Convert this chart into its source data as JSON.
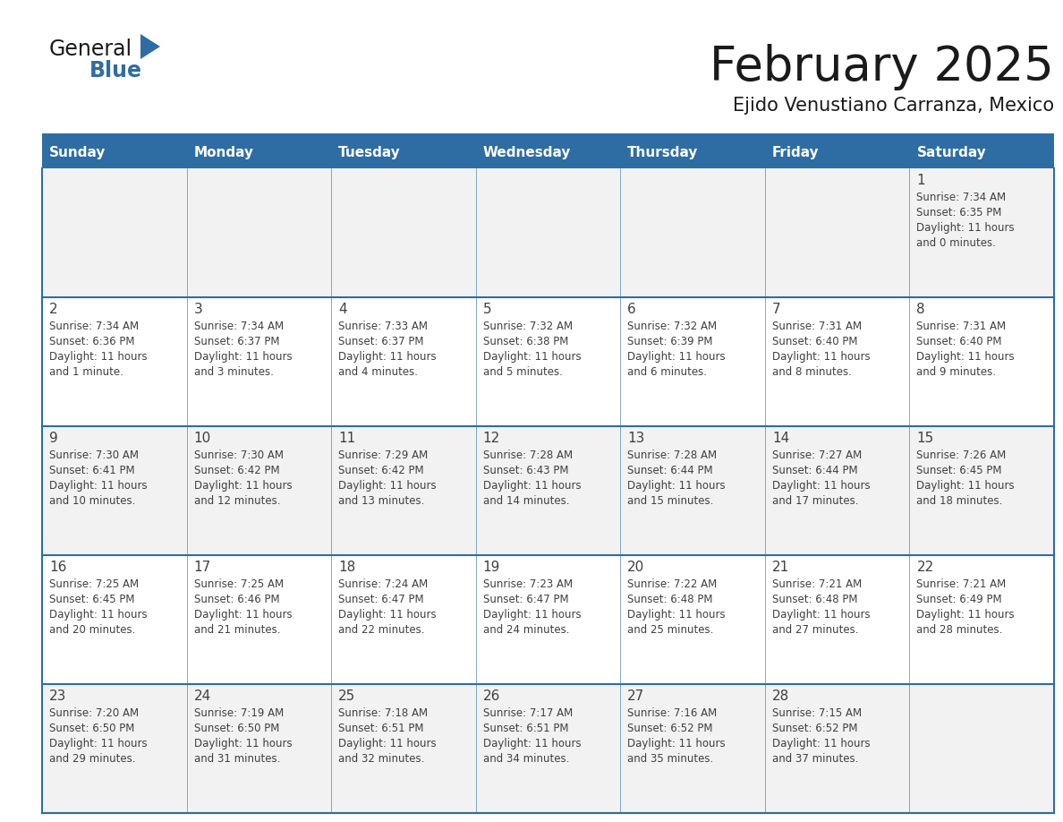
{
  "title": "February 2025",
  "subtitle": "Ejido Venustiano Carranza, Mexico",
  "header_bg": "#2E6DA4",
  "header_text": "#FFFFFF",
  "cell_bg_odd": "#F2F2F2",
  "cell_bg_even": "#FFFFFF",
  "border_color": "#2E6DA4",
  "day_headers": [
    "Sunday",
    "Monday",
    "Tuesday",
    "Wednesday",
    "Thursday",
    "Friday",
    "Saturday"
  ],
  "title_color": "#1a1a1a",
  "subtitle_color": "#1a1a1a",
  "text_color": "#404040",
  "days": [
    {
      "day": 1,
      "col": 6,
      "row": 0,
      "sunrise": "7:34 AM",
      "sunset": "6:35 PM",
      "daylight": "11 hours and 0 minutes."
    },
    {
      "day": 2,
      "col": 0,
      "row": 1,
      "sunrise": "7:34 AM",
      "sunset": "6:36 PM",
      "daylight": "11 hours and 1 minute."
    },
    {
      "day": 3,
      "col": 1,
      "row": 1,
      "sunrise": "7:34 AM",
      "sunset": "6:37 PM",
      "daylight": "11 hours and 3 minutes."
    },
    {
      "day": 4,
      "col": 2,
      "row": 1,
      "sunrise": "7:33 AM",
      "sunset": "6:37 PM",
      "daylight": "11 hours and 4 minutes."
    },
    {
      "day": 5,
      "col": 3,
      "row": 1,
      "sunrise": "7:32 AM",
      "sunset": "6:38 PM",
      "daylight": "11 hours and 5 minutes."
    },
    {
      "day": 6,
      "col": 4,
      "row": 1,
      "sunrise": "7:32 AM",
      "sunset": "6:39 PM",
      "daylight": "11 hours and 6 minutes."
    },
    {
      "day": 7,
      "col": 5,
      "row": 1,
      "sunrise": "7:31 AM",
      "sunset": "6:40 PM",
      "daylight": "11 hours and 8 minutes."
    },
    {
      "day": 8,
      "col": 6,
      "row": 1,
      "sunrise": "7:31 AM",
      "sunset": "6:40 PM",
      "daylight": "11 hours and 9 minutes."
    },
    {
      "day": 9,
      "col": 0,
      "row": 2,
      "sunrise": "7:30 AM",
      "sunset": "6:41 PM",
      "daylight": "11 hours and 10 minutes."
    },
    {
      "day": 10,
      "col": 1,
      "row": 2,
      "sunrise": "7:30 AM",
      "sunset": "6:42 PM",
      "daylight": "11 hours and 12 minutes."
    },
    {
      "day": 11,
      "col": 2,
      "row": 2,
      "sunrise": "7:29 AM",
      "sunset": "6:42 PM",
      "daylight": "11 hours and 13 minutes."
    },
    {
      "day": 12,
      "col": 3,
      "row": 2,
      "sunrise": "7:28 AM",
      "sunset": "6:43 PM",
      "daylight": "11 hours and 14 minutes."
    },
    {
      "day": 13,
      "col": 4,
      "row": 2,
      "sunrise": "7:28 AM",
      "sunset": "6:44 PM",
      "daylight": "11 hours and 15 minutes."
    },
    {
      "day": 14,
      "col": 5,
      "row": 2,
      "sunrise": "7:27 AM",
      "sunset": "6:44 PM",
      "daylight": "11 hours and 17 minutes."
    },
    {
      "day": 15,
      "col": 6,
      "row": 2,
      "sunrise": "7:26 AM",
      "sunset": "6:45 PM",
      "daylight": "11 hours and 18 minutes."
    },
    {
      "day": 16,
      "col": 0,
      "row": 3,
      "sunrise": "7:25 AM",
      "sunset": "6:45 PM",
      "daylight": "11 hours and 20 minutes."
    },
    {
      "day": 17,
      "col": 1,
      "row": 3,
      "sunrise": "7:25 AM",
      "sunset": "6:46 PM",
      "daylight": "11 hours and 21 minutes."
    },
    {
      "day": 18,
      "col": 2,
      "row": 3,
      "sunrise": "7:24 AM",
      "sunset": "6:47 PM",
      "daylight": "11 hours and 22 minutes."
    },
    {
      "day": 19,
      "col": 3,
      "row": 3,
      "sunrise": "7:23 AM",
      "sunset": "6:47 PM",
      "daylight": "11 hours and 24 minutes."
    },
    {
      "day": 20,
      "col": 4,
      "row": 3,
      "sunrise": "7:22 AM",
      "sunset": "6:48 PM",
      "daylight": "11 hours and 25 minutes."
    },
    {
      "day": 21,
      "col": 5,
      "row": 3,
      "sunrise": "7:21 AM",
      "sunset": "6:48 PM",
      "daylight": "11 hours and 27 minutes."
    },
    {
      "day": 22,
      "col": 6,
      "row": 3,
      "sunrise": "7:21 AM",
      "sunset": "6:49 PM",
      "daylight": "11 hours and 28 minutes."
    },
    {
      "day": 23,
      "col": 0,
      "row": 4,
      "sunrise": "7:20 AM",
      "sunset": "6:50 PM",
      "daylight": "11 hours and 29 minutes."
    },
    {
      "day": 24,
      "col": 1,
      "row": 4,
      "sunrise": "7:19 AM",
      "sunset": "6:50 PM",
      "daylight": "11 hours and 31 minutes."
    },
    {
      "day": 25,
      "col": 2,
      "row": 4,
      "sunrise": "7:18 AM",
      "sunset": "6:51 PM",
      "daylight": "11 hours and 32 minutes."
    },
    {
      "day": 26,
      "col": 3,
      "row": 4,
      "sunrise": "7:17 AM",
      "sunset": "6:51 PM",
      "daylight": "11 hours and 34 minutes."
    },
    {
      "day": 27,
      "col": 4,
      "row": 4,
      "sunrise": "7:16 AM",
      "sunset": "6:52 PM",
      "daylight": "11 hours and 35 minutes."
    },
    {
      "day": 28,
      "col": 5,
      "row": 4,
      "sunrise": "7:15 AM",
      "sunset": "6:52 PM",
      "daylight": "11 hours and 37 minutes."
    }
  ],
  "logo_text1": "General",
  "logo_text2": "Blue",
  "logo_triangle_color": "#2E6DA4",
  "logo_text1_color": "#1a1a1a"
}
